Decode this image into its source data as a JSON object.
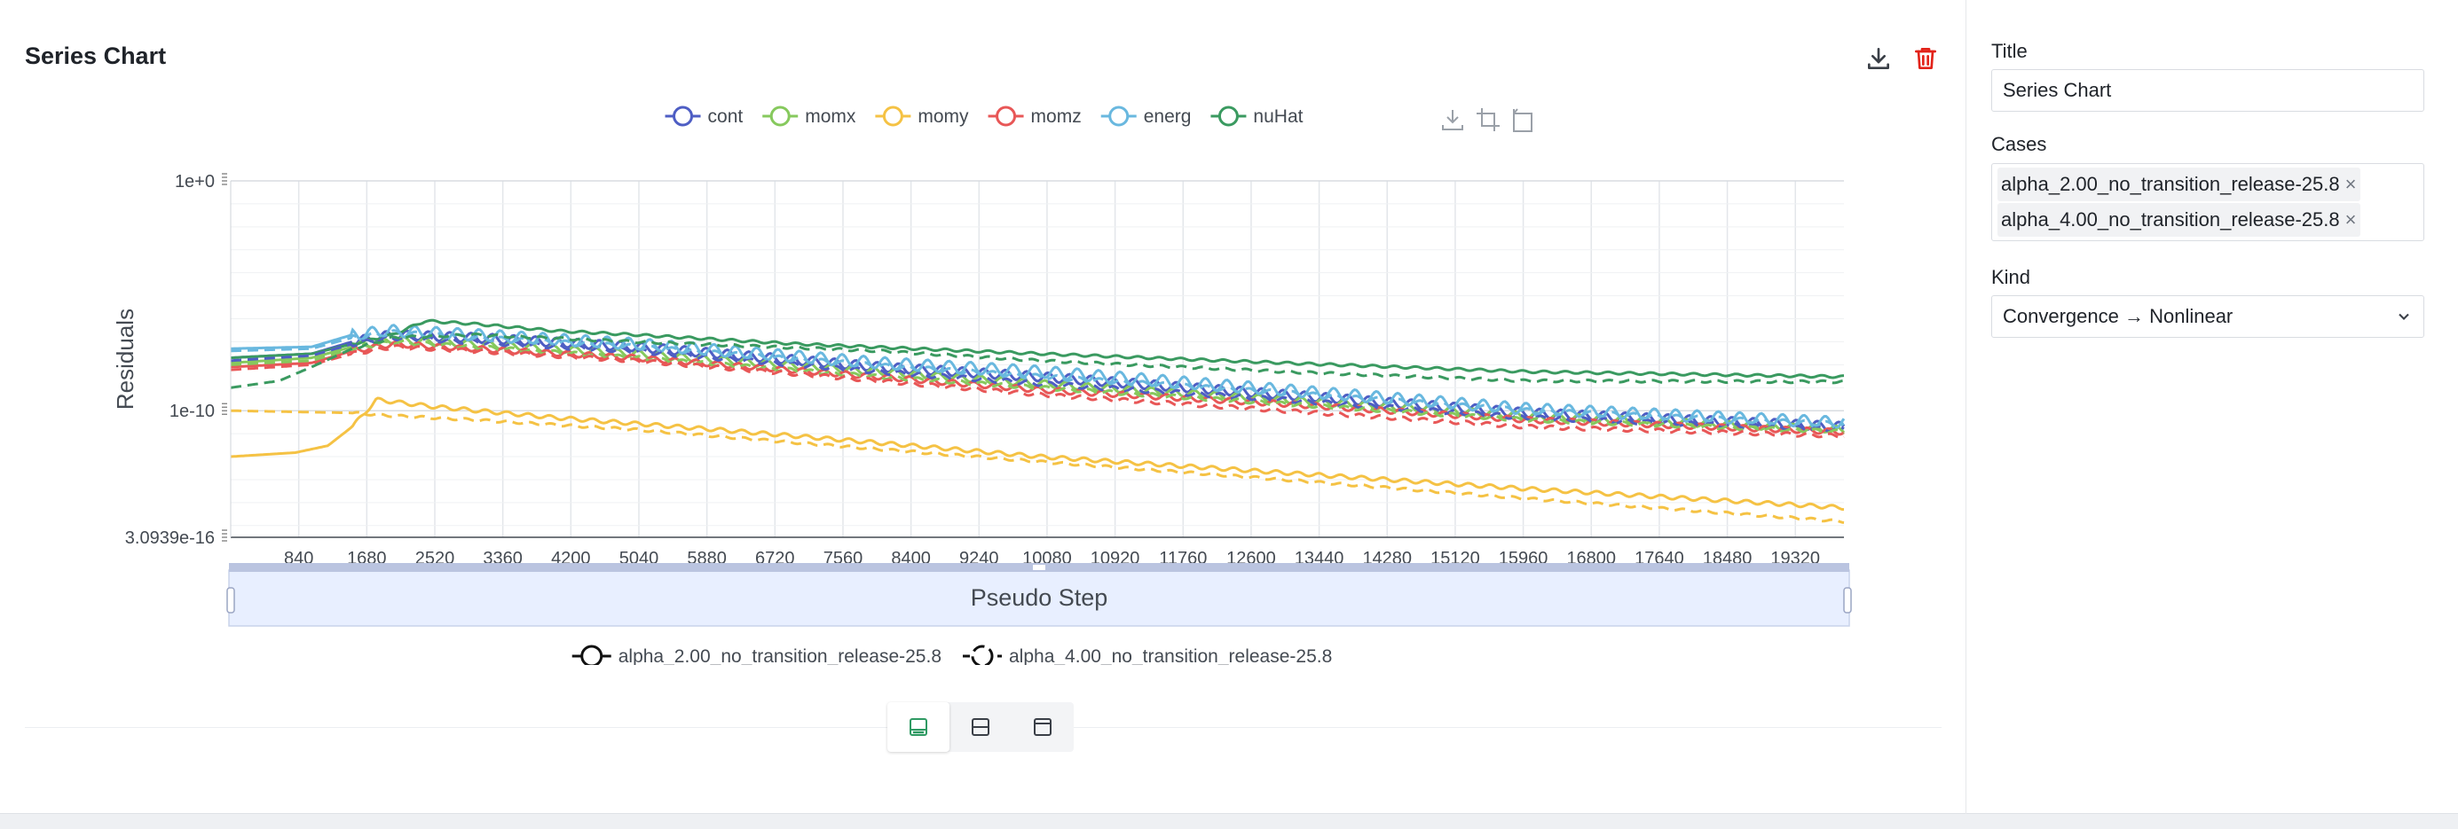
{
  "panel": {
    "title": "Series Chart"
  },
  "header_icons": [
    "download-icon",
    "trash-icon"
  ],
  "modebar_icons": [
    "download-plot-icon",
    "autoscale-icon",
    "reset-axes-icon"
  ],
  "layout_buttons": [
    {
      "icon": "layout-bottom-legend-icon",
      "active": true
    },
    {
      "icon": "layout-split-icon",
      "active": false
    },
    {
      "icon": "layout-top-legend-icon",
      "active": false
    }
  ],
  "chart_data": {
    "type": "line",
    "xlabel": "Pseudo Step",
    "ylabel": "Residuals",
    "yscale": "log",
    "xlim": [
      0,
      19920
    ],
    "ylim": [
      3.0939e-16,
      1
    ],
    "x_ticks": [
      840,
      1680,
      2520,
      3360,
      4200,
      5040,
      5880,
      6720,
      7560,
      8400,
      9240,
      10080,
      10920,
      11760,
      12600,
      13440,
      14280,
      15120,
      15960,
      16800,
      17640,
      18480,
      19320
    ],
    "y_ticks": [
      {
        "label": "1e+0",
        "value": 1
      },
      {
        "label": "1e-10",
        "value": 1e-10
      },
      {
        "label": "3.0939e-16",
        "value": 3.0939e-16
      }
    ],
    "grid": true,
    "legend_position": "top-center",
    "series_legend": [
      {
        "name": "cont",
        "color": "#4e5ec4"
      },
      {
        "name": "momx",
        "color": "#86c95d"
      },
      {
        "name": "momy",
        "color": "#f5c244"
      },
      {
        "name": "momz",
        "color": "#e85757"
      },
      {
        "name": "energ",
        "color": "#69b8df"
      },
      {
        "name": "nuHat",
        "color": "#3a9a60"
      }
    ],
    "case_legend": [
      {
        "name": "alpha_2.00_no_transition_release-25.8",
        "dash": "solid"
      },
      {
        "name": "alpha_4.00_no_transition_release-25.8",
        "dash": "dashed"
      }
    ],
    "series": [
      {
        "name": "cont",
        "case": "alpha_2.00_no_transition_release-25.8",
        "color": "#4e5ec4",
        "dash": "solid",
        "osc": 0.2,
        "x": [
          0,
          1000,
          1500,
          2000,
          3000,
          5000,
          8000,
          10000,
          13000,
          16000,
          19920
        ],
        "y": [
          2e-08,
          3e-08,
          1e-07,
          2e-07,
          1.5e-07,
          6e-08,
          8e-09,
          3e-09,
          5e-10,
          8e-11,
          2e-11
        ]
      },
      {
        "name": "momx",
        "case": "alpha_2.00_no_transition_release-25.8",
        "color": "#86c95d",
        "dash": "solid",
        "osc": 0.15,
        "x": [
          0,
          1000,
          1500,
          2000,
          3000,
          5000,
          8000,
          10000,
          13000,
          16000,
          19920
        ],
        "y": [
          1.2e-08,
          2e-08,
          6e-08,
          1.2e-07,
          8e-08,
          3e-08,
          5e-09,
          1.5e-09,
          3e-10,
          6e-11,
          1.5e-11
        ]
      },
      {
        "name": "momy",
        "case": "alpha_2.00_no_transition_release-25.8",
        "color": "#f5c244",
        "dash": "solid",
        "osc": 0.08,
        "x": [
          0,
          800,
          1200,
          1500,
          1800,
          2500,
          4000,
          6000,
          8000,
          10000,
          13000,
          16000,
          19920
        ],
        "y": [
          1e-12,
          1.5e-12,
          3e-12,
          2e-11,
          3e-10,
          1.5e-10,
          5e-11,
          1.5e-11,
          4e-12,
          1e-12,
          2e-13,
          4e-14,
          6e-15
        ]
      },
      {
        "name": "momz",
        "case": "alpha_2.00_no_transition_release-25.8",
        "color": "#e85757",
        "dash": "solid",
        "osc": 0.12,
        "x": [
          0,
          1000,
          1500,
          2000,
          3000,
          5000,
          8000,
          10000,
          13000,
          16000,
          19920
        ],
        "y": [
          8e-09,
          1.2e-08,
          4e-08,
          8e-08,
          5e-08,
          2e-08,
          3e-09,
          8e-10,
          2e-10,
          4e-11,
          1.2e-11
        ]
      },
      {
        "name": "energ",
        "case": "alpha_2.00_no_transition_release-25.8",
        "color": "#69b8df",
        "dash": "solid",
        "osc": 0.25,
        "x": [
          0,
          1000,
          1500,
          2000,
          3000,
          5000,
          8000,
          10000,
          13000,
          16000,
          19920
        ],
        "y": [
          5e-08,
          6e-08,
          2e-07,
          3e-07,
          2e-07,
          8e-08,
          1.2e-08,
          5e-09,
          8e-10,
          1.2e-10,
          3e-11
        ]
      },
      {
        "name": "nuHat",
        "case": "alpha_2.00_no_transition_release-25.8",
        "color": "#3a9a60",
        "dash": "solid",
        "osc": 0.05,
        "x": [
          0,
          1000,
          1500,
          2000,
          2400,
          3000,
          4000,
          5000,
          7000,
          10000,
          13000,
          16000,
          19920
        ],
        "y": [
          2e-08,
          3e-08,
          8e-08,
          2e-07,
          8e-07,
          6e-07,
          3e-07,
          2e-07,
          8e-08,
          3e-08,
          1.2e-08,
          5e-09,
          3e-09
        ]
      },
      {
        "name": "cont",
        "case": "alpha_4.00_no_transition_release-25.8",
        "color": "#4e5ec4",
        "dash": "dashed",
        "osc": 0.1,
        "x": [
          0,
          1000,
          1500,
          2000,
          3000,
          5000,
          8000,
          10000,
          13000,
          16000,
          19920
        ],
        "y": [
          1.5e-08,
          2.5e-08,
          8e-08,
          1.5e-07,
          1e-07,
          4e-08,
          5e-09,
          1.5e-09,
          3e-10,
          5e-11,
          1.5e-11
        ]
      },
      {
        "name": "momx",
        "case": "alpha_4.00_no_transition_release-25.8",
        "color": "#86c95d",
        "dash": "dashed",
        "osc": 0.08,
        "x": [
          0,
          1000,
          1500,
          2000,
          3000,
          5000,
          8000,
          10000,
          13000,
          16000,
          19920
        ],
        "y": [
          1e-08,
          1.5e-08,
          5e-08,
          1e-07,
          6e-08,
          2e-08,
          3e-09,
          1e-09,
          2e-10,
          4e-11,
          1.2e-11
        ]
      },
      {
        "name": "momy",
        "case": "alpha_4.00_no_transition_release-25.8",
        "color": "#f5c244",
        "dash": "dashed",
        "osc": 0.05,
        "x": [
          0,
          1500,
          2000,
          3000,
          5000,
          7000,
          10000,
          13000,
          16000,
          19920
        ],
        "y": [
          1e-10,
          8e-11,
          6e-11,
          4e-11,
          1.5e-11,
          4e-12,
          6e-13,
          1e-13,
          1.5e-14,
          1.5e-15
        ]
      },
      {
        "name": "momz",
        "case": "alpha_4.00_no_transition_release-25.8",
        "color": "#e85757",
        "dash": "dashed",
        "osc": 0.08,
        "x": [
          0,
          1000,
          1500,
          2000,
          3000,
          5000,
          8000,
          10000,
          13000,
          16000,
          19920
        ],
        "y": [
          6e-09,
          1e-08,
          3e-08,
          6e-08,
          4e-08,
          1.5e-08,
          2e-09,
          5e-10,
          1e-10,
          2e-11,
          8e-12
        ]
      },
      {
        "name": "energ",
        "case": "alpha_4.00_no_transition_release-25.8",
        "color": "#69b8df",
        "dash": "dashed",
        "osc": 0.1,
        "x": [
          0,
          1000,
          1500,
          2000,
          3000,
          5000,
          8000,
          10000,
          13000,
          16000,
          19920
        ],
        "y": [
          4e-08,
          5e-08,
          1.5e-07,
          2.5e-07,
          1.5e-07,
          6e-08,
          9e-09,
          3e-09,
          6e-10,
          1e-10,
          2.5e-11
        ]
      },
      {
        "name": "nuHat",
        "case": "alpha_4.00_no_transition_release-25.8",
        "color": "#3a9a60",
        "dash": "dashed",
        "osc": 0.05,
        "x": [
          0,
          600,
          1000,
          1500,
          2000,
          3000,
          5000,
          8000,
          10000,
          13000,
          16000,
          19920
        ],
        "y": [
          1e-09,
          2e-09,
          8e-09,
          5e-08,
          1.5e-07,
          2e-07,
          1e-07,
          4e-08,
          1.5e-08,
          5e-09,
          2e-09,
          1.8e-09
        ]
      }
    ]
  },
  "sidebar": {
    "title_label": "Title",
    "title_value": "Series Chart",
    "cases_label": "Cases",
    "cases": [
      "alpha_2.00_no_transition_release-25.8",
      "alpha_4.00_no_transition_release-25.8"
    ],
    "kind_label": "Kind",
    "kind_value": "Convergence → Nonlinear"
  }
}
